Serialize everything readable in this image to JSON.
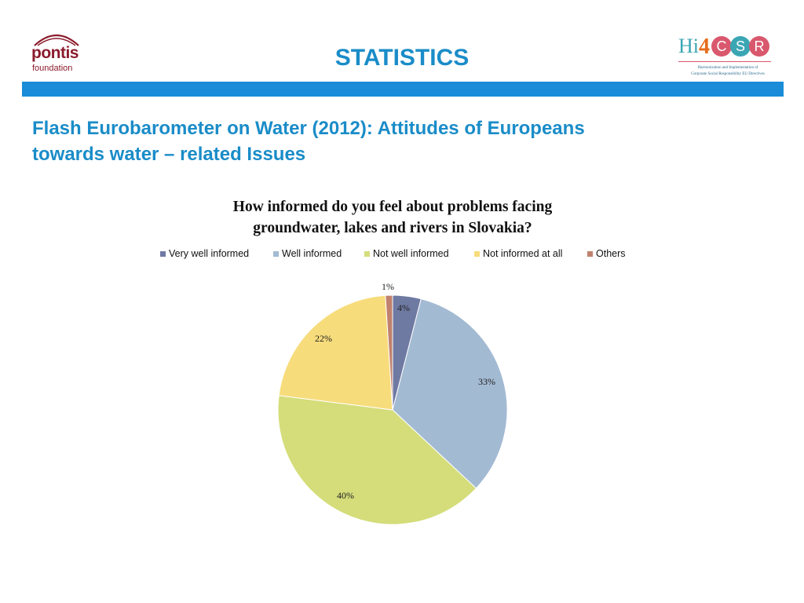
{
  "header": {
    "left_logo": {
      "word1": "pontis",
      "word2": "foundation"
    },
    "title": "STATISTICS",
    "right_logo": {
      "hi": "Hi",
      "four": "4",
      "letters": [
        "C",
        "S",
        "R"
      ],
      "tagline1": "Harmonization and Implementation of",
      "tagline2": "Corporate Social Responsibility EU Directives"
    }
  },
  "subtitle": {
    "line1": "Flash Eurobarometer on Water (2012): Attitudes of Europeans",
    "line2": "towards water – related Issues"
  },
  "chart_data": {
    "type": "pie",
    "title_line1": "How informed do you feel about problems facing",
    "title_line2": "groundwater, lakes and rivers in Slovakia?",
    "legend_position": "top",
    "categories": [
      "Very well informed",
      "Well informed",
      "Not well informed",
      "Not informed at all",
      "Others"
    ],
    "values": [
      4,
      33,
      40,
      22,
      1
    ],
    "labels": [
      "4%",
      "33%",
      "40%",
      "22%",
      "1%"
    ],
    "colors": [
      "#6f7aa3",
      "#a3bad3",
      "#d4dd7a",
      "#f7dc7c",
      "#c0826e"
    ]
  }
}
